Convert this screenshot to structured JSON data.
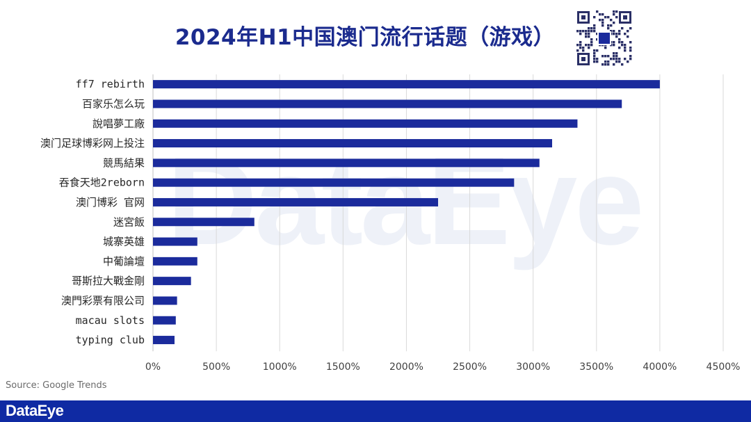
{
  "header": {
    "title": "2024年H1中国澳门流行话题（游戏）"
  },
  "watermark": {
    "text": "DataEye"
  },
  "source": {
    "text": "Source: Google Trends"
  },
  "footer": {
    "brand": "DataEye"
  },
  "colors": {
    "bar": "#1b2b9c",
    "title": "#1b2b8e",
    "footer": "#0f2aa3",
    "grid": "#d9d9d9"
  },
  "chart_data": {
    "type": "bar",
    "orientation": "horizontal",
    "title": "2024年H1中国澳门流行话题（游戏）",
    "categories": [
      "ff7 rebirth",
      "百家乐怎么玩",
      "說唱夢工廠",
      "澳门足球博彩网上投注",
      "競馬結果",
      "吞食天地2reborn",
      "澳门博彩 官网",
      "迷宮飯",
      "城寨英雄",
      "中葡論壇",
      "哥斯拉大戰金剛",
      "澳門彩票有限公司",
      "macau slots",
      "typing club"
    ],
    "values": [
      4000,
      3700,
      3350,
      3150,
      3050,
      2850,
      2250,
      800,
      350,
      350,
      300,
      190,
      180,
      170
    ],
    "xlim": [
      0,
      4500
    ],
    "xticks": [
      "0%",
      "500%",
      "1000%",
      "1500%",
      "2000%",
      "2500%",
      "3000%",
      "3500%",
      "4000%",
      "4500%"
    ],
    "xtick_values": [
      0,
      500,
      1000,
      1500,
      2000,
      2500,
      3000,
      3500,
      4000,
      4500
    ],
    "grid": "vertical",
    "legend": "none"
  }
}
